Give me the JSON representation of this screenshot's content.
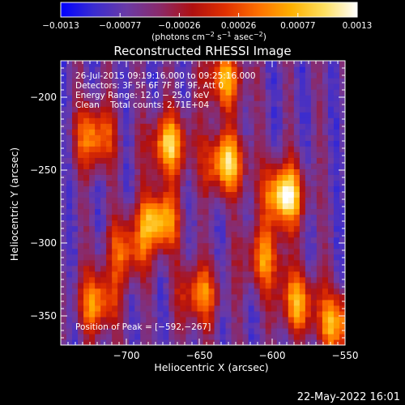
{
  "chart_data": {
    "type": "heatmap",
    "title": "Reconstructed RHESSI Image",
    "xlabel": "Heliocentric X (arcsec)",
    "ylabel": "Heliocentric Y (arcsec)",
    "xlim": [
      -745,
      -550
    ],
    "ylim": [
      -370,
      -175
    ],
    "x_ticks": [
      -700,
      -650,
      -600,
      -550
    ],
    "x_tick_labels": [
      "−700",
      "−650",
      "−600",
      "−550"
    ],
    "y_ticks": [
      -200,
      -250,
      -300,
      -350
    ],
    "y_tick_labels": [
      "−200",
      "−250",
      "−300",
      "−350"
    ],
    "colorbar": {
      "min": -0.0013,
      "max": 0.0013,
      "tick_labels": [
        "−0.0013",
        "−0.00077",
        "−0.00026",
        "0.00026",
        "0.00077",
        "0.0013"
      ],
      "unit_text": "(photons cm",
      "unit_sup1": "−2",
      "unit_mid": " s",
      "unit_sup2": "−1",
      "unit_mid2": " asec",
      "unit_sup3": "−2",
      "unit_end": ")",
      "colors": [
        "#0000ff",
        "#3a2cd0",
        "#6a3aa6",
        "#8a2a6a",
        "#b01010",
        "#e03000",
        "#ff7000",
        "#ffb000",
        "#ffe060",
        "#ffffff"
      ]
    },
    "annotations": [
      "26-Jul-2015 09:19:16.000 to 09:25:16.000",
      "Detectors: 3F 5F 6F 7F 8F 9F, Att 0",
      "Energy Range: 12.0 − 25.0 keV",
      "Clean    Total counts: 2.71E+04"
    ],
    "peak_label": "Position of Peak = [−592,−267]",
    "peak": [
      -592,
      -267
    ],
    "sources": [
      {
        "x": -592,
        "y": -267,
        "intensity": 0.0013
      },
      {
        "x": -632,
        "y": -245,
        "intensity": 0.001
      },
      {
        "x": -678,
        "y": -285,
        "intensity": 0.00095
      },
      {
        "x": -671,
        "y": -232,
        "intensity": 0.00085
      },
      {
        "x": -722,
        "y": -227,
        "intensity": 0.00065
      },
      {
        "x": -633,
        "y": -188,
        "intensity": 0.0006
      },
      {
        "x": -555,
        "y": -355,
        "intensity": 0.00075
      },
      {
        "x": -583,
        "y": -340,
        "intensity": 0.0006
      },
      {
        "x": -720,
        "y": -340,
        "intensity": 0.0006
      },
      {
        "x": -650,
        "y": -335,
        "intensity": 0.0005
      },
      {
        "x": -606,
        "y": -310,
        "intensity": 0.00045
      },
      {
        "x": -700,
        "y": -305,
        "intensity": 0.0004
      }
    ],
    "background_level": -0.0007
  },
  "footer": {
    "date": "22-May-2022 16:01"
  }
}
